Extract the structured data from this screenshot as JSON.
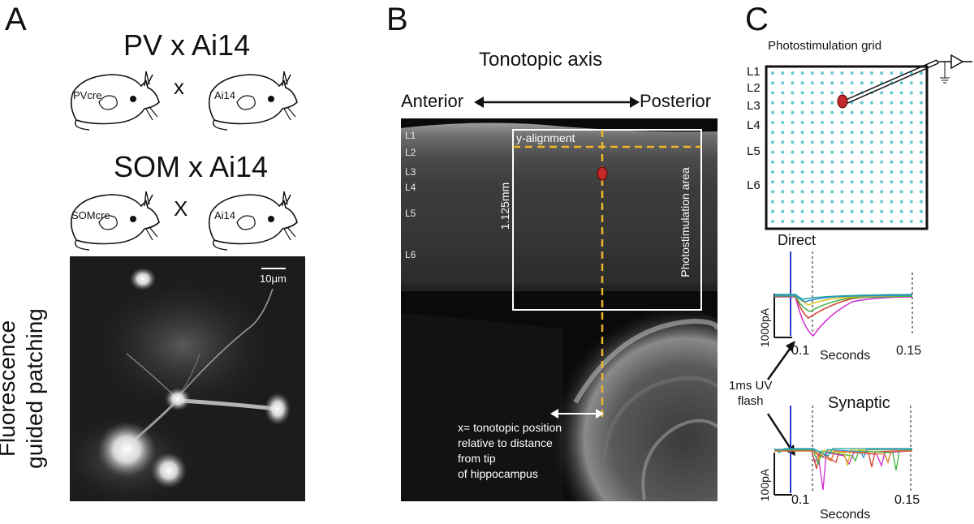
{
  "panels": {
    "a": "A",
    "b": "B",
    "c": "C"
  },
  "panel_a": {
    "pv_title": "PV x Ai14",
    "som_title": "SOM x Ai14",
    "cross_symbol": "x",
    "cross_symbol_2": "X",
    "pv_mouse": "PVcre",
    "som_mouse": "SOMcre",
    "reporter_mouse": "Ai14",
    "scale_bar": "10μm",
    "side_label_line1": "Fluorescence",
    "side_label_line2": "guided patching"
  },
  "panel_b": {
    "title": "Tonotopic axis",
    "anterior": "Anterior",
    "posterior": "Posterior",
    "layers": [
      "L1",
      "L2",
      "L3",
      "L4",
      "L5",
      "L6"
    ],
    "y_alignment": "y-alignment",
    "depth": "1.125mm",
    "photostim_area": "Photostimulation area",
    "x_caption": [
      "x= tonotopic position",
      "relative to distance",
      "from tip",
      "of hippocampus"
    ]
  },
  "panel_c": {
    "grid_title": "Photostimulation grid",
    "layers": [
      "L1",
      "L2",
      "L3",
      "L4",
      "L5",
      "L6"
    ],
    "direct_title": "Direct",
    "synaptic_title": "Synaptic",
    "direct_scale": "1000pA",
    "synaptic_scale": "100pA",
    "x_tick_start": "0.1",
    "x_tick_end": "0.15",
    "x_unit": "Seconds",
    "flash_line1": "1ms UV",
    "flash_line2": "flash"
  },
  "colors": {
    "grid_dot": "#66c8d2",
    "cell_red": "#c0282a",
    "dash_yellow": "#f0b62a",
    "flash_blue": "#2b3cc9"
  }
}
